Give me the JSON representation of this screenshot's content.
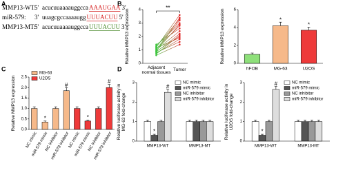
{
  "panels": [
    "A",
    "B",
    "C",
    "D"
  ],
  "sequences": [
    {
      "label": "MMP13-WT:",
      "end5": "5'",
      "seq": "acucuuaaaauggcca",
      "site": "AAAUGAA",
      "end3": "3'",
      "site_color": "#d62020"
    },
    {
      "label": "miR-579:",
      "end5": "3'",
      "seq": "uuagcgccaaaaugg",
      "site": "UUUACUU",
      "end3": "5'",
      "site_color": "#d62020"
    },
    {
      "label": "MMP13-MT:",
      "end5": "5'",
      "seq": "acucuuaaaauggcca",
      "site": "UUUACUU",
      "end3": "3'",
      "site_color": "#4a8a2a"
    }
  ],
  "chart_data": [
    {
      "type": "paired",
      "ylabel": "Relative MMP13 expression",
      "categories": [
        "Adjacent normal tissues",
        "Tumor"
      ],
      "point_colors": [
        "#3ec43e",
        "#e02828"
      ],
      "pairs": [
        [
          0.7,
          2.1
        ],
        [
          0.9,
          3.4
        ],
        [
          1.1,
          2.8
        ],
        [
          0.8,
          1.6
        ],
        [
          1.3,
          3.0
        ],
        [
          1.0,
          2.4
        ],
        [
          0.6,
          1.4
        ],
        [
          1.2,
          3.6
        ],
        [
          0.9,
          2.0
        ],
        [
          1.4,
          2.6
        ],
        [
          0.75,
          1.8
        ],
        [
          1.05,
          3.2
        ],
        [
          0.85,
          2.2
        ],
        [
          1.15,
          1.9
        ],
        [
          0.95,
          2.9
        ],
        [
          1.25,
          3.3
        ]
      ],
      "significance": "**",
      "ylim": [
        0,
        4
      ],
      "yticks": [
        0,
        1,
        2,
        3,
        4
      ]
    },
    {
      "type": "bar",
      "ylabel": "Relative MMP13 expression",
      "categories": [
        "hFOB",
        "MG-63",
        "U2OS"
      ],
      "values": [
        1.0,
        4.2,
        3.7
      ],
      "errors": [
        0.15,
        0.4,
        0.35
      ],
      "colors": [
        "#8ee07a",
        "#f6b98a",
        "#ee3a3a"
      ],
      "labels": [
        null,
        "*",
        "*"
      ],
      "ylim": [
        0,
        6
      ],
      "yticks": [
        0,
        2,
        4,
        6
      ]
    },
    {
      "type": "grouped_bar",
      "ylabel": "Relative MMP13 expression",
      "categories": [
        "NC mimic",
        "miR-579 mimic",
        "NC inhibitor",
        "miR-579 inhibitor",
        "NC mimic",
        "miR-579 mimic",
        "NC inhibitor",
        "miR-579 inhibitor"
      ],
      "series": [
        {
          "name": "MG-63",
          "color": "#f6b98a",
          "values": [
            1.0,
            0.35,
            1.0,
            1.85,
            null,
            null,
            null,
            null
          ],
          "errors": [
            0.08,
            0.05,
            0.08,
            0.15,
            null,
            null,
            null,
            null
          ],
          "labels": [
            null,
            "*",
            null,
            "#",
            null,
            null,
            null,
            null
          ]
        },
        {
          "name": "U2OS",
          "color": "#ee3a3a",
          "values": [
            null,
            null,
            null,
            null,
            1.0,
            0.4,
            1.0,
            2.0
          ],
          "errors": [
            null,
            null,
            null,
            null,
            0.08,
            0.05,
            0.08,
            0.15
          ],
          "labels": [
            null,
            null,
            null,
            null,
            null,
            "*",
            null,
            "#"
          ]
        }
      ],
      "xtick_rotation": 60,
      "legend": "upper left",
      "ylim": [
        0,
        2.5
      ],
      "yticks": [
        {
          "value": 0,
          "label": "0.0"
        },
        0.5,
        {
          "value": 1,
          "label": "1.0"
        },
        1.5,
        {
          "value": 2,
          "label": "2.0"
        },
        2.5
      ]
    },
    {
      "type": "grouped_bar",
      "ylabel": "Relative luciferase activity in MG-63 fold-change",
      "categories": [
        "MMP13-WT",
        "MMP13-MT"
      ],
      "series": [
        {
          "name": "NC mimic",
          "color": "#ffffff",
          "values": [
            1.0,
            1.0
          ],
          "errors": [
            0.08,
            0.08
          ],
          "labels": [
            null,
            null
          ]
        },
        {
          "name": "miR-579 mimic",
          "color": "#555555",
          "values": [
            0.3,
            1.0
          ],
          "errors": [
            0.05,
            0.08
          ],
          "labels": [
            "*",
            null
          ]
        },
        {
          "name": "NC inhibitor",
          "color": "#999999",
          "values": [
            1.0,
            1.0
          ],
          "errors": [
            0.08,
            0.08
          ],
          "labels": [
            null,
            null
          ]
        },
        {
          "name": "miR-579 inhibitor",
          "color": "#dddddd",
          "values": [
            2.5,
            1.0
          ],
          "errors": [
            0.15,
            0.08
          ],
          "labels": [
            "#",
            null
          ]
        }
      ],
      "xtick_rotation": 0,
      "legend": "upper right",
      "ylim": [
        0,
        3
      ],
      "yticks": [
        0,
        1,
        2,
        3
      ]
    },
    {
      "type": "grouped_bar",
      "ylabel": "Relative luciferase activity in U2OS fold-change",
      "categories": [
        "MMP13-WT",
        "MMP13-MT"
      ],
      "series": [
        {
          "name": "NC mimic",
          "color": "#ffffff",
          "values": [
            1.0,
            1.0
          ],
          "errors": [
            0.08,
            0.08
          ],
          "labels": [
            null,
            null
          ]
        },
        {
          "name": "miR-579 mimic",
          "color": "#555555",
          "values": [
            0.3,
            1.0
          ],
          "errors": [
            0.05,
            0.08
          ],
          "labels": [
            "*",
            null
          ]
        },
        {
          "name": "NC inhibitor",
          "color": "#999999",
          "values": [
            1.0,
            1.0
          ],
          "errors": [
            0.08,
            0.08
          ],
          "labels": [
            null,
            null
          ]
        },
        {
          "name": "miR-579 inhibitor",
          "color": "#dddddd",
          "values": [
            2.65,
            1.0
          ],
          "errors": [
            0.15,
            0.08
          ],
          "labels": [
            "#",
            null
          ]
        }
      ],
      "xtick_rotation": 0,
      "legend": "upper right",
      "ylim": [
        0,
        3
      ],
      "yticks": [
        0,
        1,
        2,
        3
      ]
    }
  ]
}
